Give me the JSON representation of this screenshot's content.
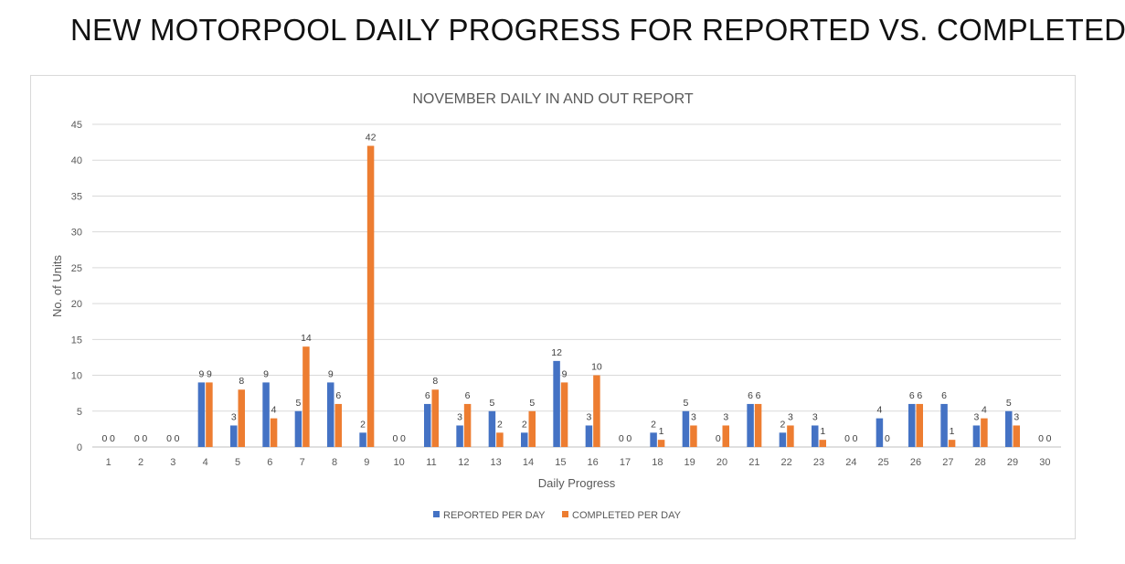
{
  "page": {
    "title": "NEW MOTORPOOL DAILY PROGRESS FOR REPORTED VS. COMPLETED"
  },
  "chart_data": {
    "type": "bar",
    "title": "NOVEMBER DAILY IN AND OUT REPORT",
    "xlabel": "Daily Progress",
    "ylabel": "No. of Units",
    "ylim": [
      0,
      45
    ],
    "yticks": [
      0,
      5,
      10,
      15,
      20,
      25,
      30,
      35,
      40,
      45
    ],
    "grid": true,
    "legend_position": "bottom",
    "categories": [
      "1",
      "2",
      "3",
      "4",
      "5",
      "6",
      "7",
      "8",
      "9",
      "10",
      "11",
      "12",
      "13",
      "14",
      "15",
      "16",
      "17",
      "18",
      "19",
      "20",
      "21",
      "22",
      "23",
      "24",
      "25",
      "26",
      "27",
      "28",
      "29",
      "30"
    ],
    "series": [
      {
        "name": "REPORTED PER DAY",
        "color": "#4472c4",
        "values": [
          0,
          0,
          0,
          9,
          3,
          9,
          5,
          9,
          2,
          0,
          6,
          3,
          5,
          2,
          12,
          3,
          0,
          2,
          5,
          0,
          6,
          2,
          3,
          0,
          4,
          6,
          6,
          3,
          5,
          0
        ]
      },
      {
        "name": "COMPLETED PER DAY",
        "color": "#ed7d31",
        "values": [
          0,
          0,
          0,
          9,
          8,
          4,
          14,
          6,
          42,
          0,
          8,
          6,
          2,
          5,
          9,
          10,
          0,
          1,
          3,
          3,
          6,
          3,
          1,
          0,
          0,
          6,
          1,
          4,
          3,
          0
        ]
      }
    ]
  }
}
